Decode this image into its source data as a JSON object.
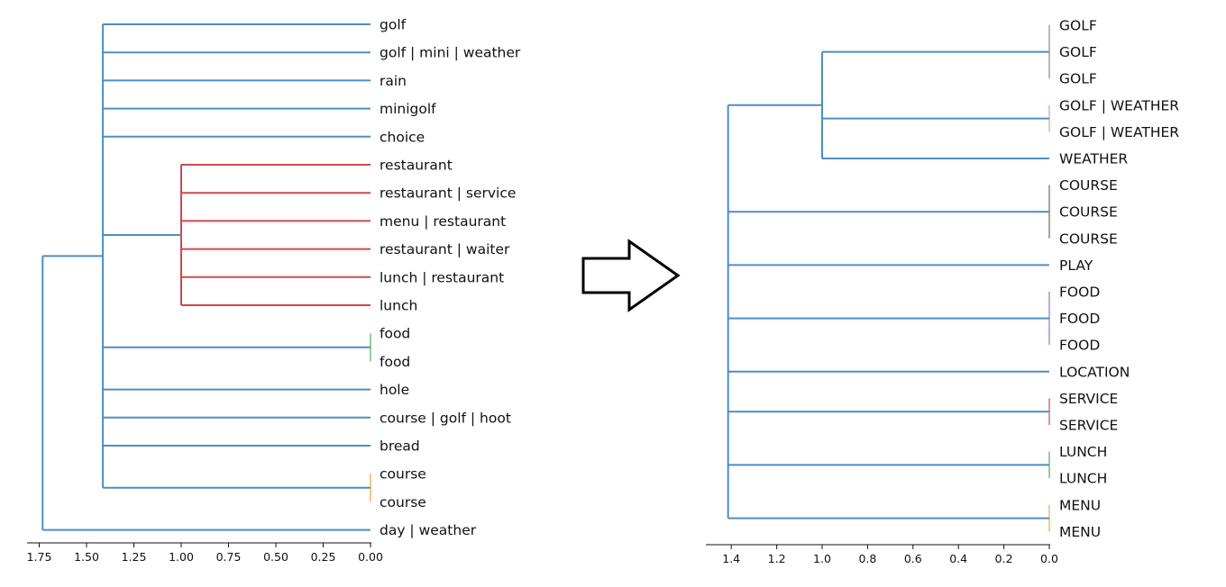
{
  "colors": {
    "blue": "#4c8fc4",
    "red": "#d0484a",
    "green": "#4caf50",
    "orange": "#f5a13a",
    "purple": "#a06cc8",
    "brown": "#8c5a4a",
    "gray": "#8a8a8a",
    "pink": "#e88ac8",
    "text": "#111111",
    "arrow_stroke": "#000000"
  },
  "arrow": {
    "icon": "arrow-right-icon"
  },
  "chart_data": [
    {
      "type": "dendrogram",
      "orientation": "left",
      "xlim": [
        1.8,
        0.0
      ],
      "x_ticks": [
        "1.75",
        "1.50",
        "1.25",
        "1.00",
        "0.75",
        "0.50",
        "0.25",
        "0.00"
      ],
      "x_tick_values": [
        1.75,
        1.5,
        1.25,
        1.0,
        0.75,
        0.5,
        0.25,
        0.0
      ],
      "leaves": [
        "golf",
        "golf | mini | weather",
        "rain",
        "minigolf",
        "choice",
        "restaurant",
        "restaurant | service",
        "menu | restaurant",
        "restaurant | waiter",
        "lunch | restaurant",
        "lunch",
        "food",
        "food",
        "hole",
        "course | golf | hoot",
        "bread",
        "course",
        "course",
        "day | weather"
      ],
      "clusters": [
        {
          "color": "red",
          "height": 1.0,
          "leaves": [
            5,
            6,
            7,
            8,
            9,
            10
          ]
        },
        {
          "color": "green",
          "height": 0.0,
          "leaves": [
            11,
            12
          ]
        },
        {
          "color": "orange",
          "height": 0.0,
          "leaves": [
            16,
            17
          ]
        }
      ],
      "merges": [
        {
          "height": 1.414,
          "children": [
            "leaf:0",
            "leaf:1",
            "leaf:2",
            "leaf:3",
            "leaf:4",
            "cluster:0",
            "cluster:1",
            "leaf:13",
            "leaf:14",
            "leaf:15",
            "cluster:2"
          ],
          "color": "blue"
        },
        {
          "height": 1.732,
          "children": [
            "merge:0",
            "leaf:18"
          ],
          "color": "blue"
        }
      ]
    },
    {
      "type": "dendrogram",
      "orientation": "left",
      "xlim": [
        1.5,
        0.0
      ],
      "x_ticks": [
        "1.4",
        "1.2",
        "1.0",
        "0.8",
        "0.6",
        "0.4",
        "0.2",
        "0.0"
      ],
      "x_tick_values": [
        1.4,
        1.2,
        1.0,
        0.8,
        0.6,
        0.4,
        0.2,
        0.0
      ],
      "leaves": [
        "GOLF",
        "GOLF",
        "GOLF",
        "GOLF | WEATHER",
        "GOLF | WEATHER",
        "WEATHER",
        "COURSE",
        "COURSE",
        "COURSE",
        "PLAY",
        "FOOD",
        "FOOD",
        "FOOD",
        "LOCATION",
        "SERVICE",
        "SERVICE",
        "LUNCH",
        "LUNCH",
        "MENU",
        "MENU"
      ],
      "clusters": [
        {
          "color": "gray",
          "height": 0.0,
          "leaves": [
            0,
            1,
            2
          ]
        },
        {
          "color": "pink",
          "height": 0.0,
          "leaves": [
            3,
            4
          ]
        },
        {
          "color": "brown",
          "height": 0.0,
          "leaves": [
            6,
            7,
            8
          ]
        },
        {
          "color": "purple",
          "height": 0.0,
          "leaves": [
            10,
            11,
            12
          ]
        },
        {
          "color": "red",
          "height": 0.0,
          "leaves": [
            14,
            15
          ]
        },
        {
          "color": "green",
          "height": 0.0,
          "leaves": [
            16,
            17
          ]
        },
        {
          "color": "orange",
          "height": 0.0,
          "leaves": [
            18,
            19
          ]
        }
      ],
      "merges": [
        {
          "height": 1.0,
          "children": [
            "cluster:0",
            "cluster:1",
            "leaf:5"
          ],
          "color": "blue"
        },
        {
          "height": 1.414,
          "children": [
            "merge:0",
            "cluster:2",
            "leaf:9",
            "cluster:3",
            "leaf:13",
            "cluster:4",
            "cluster:5",
            "cluster:6"
          ],
          "color": "blue"
        }
      ]
    }
  ]
}
